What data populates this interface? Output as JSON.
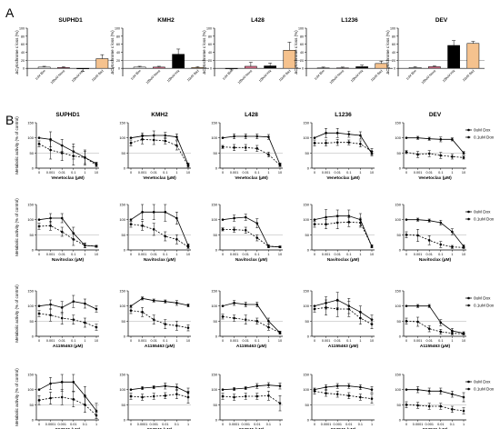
{
  "panel_labels": {
    "a": "A",
    "b": "B"
  },
  "chart_data": {
    "panel_a": {
      "type": "bar",
      "ylabel": "ΔCytochrome c loss (%)",
      "ylim": [
        -20,
        100
      ],
      "yticks": [
        0,
        20,
        40,
        60,
        80,
        100
      ],
      "threshold": 20,
      "categories": [
        "1uM Bim",
        "100uM Noxa",
        "100uM Hrk",
        "10uM Bad"
      ],
      "bar_colors": [
        "#f5f5f5",
        "#d6708a",
        "#000000",
        "#f5c28e"
      ],
      "cell_lines": [
        {
          "name": "SUPHD1",
          "values": [
            3,
            2,
            -1,
            24
          ],
          "errors": [
            2,
            2,
            6,
            10
          ]
        },
        {
          "name": "KMH2",
          "values": [
            3,
            3,
            35,
            2
          ],
          "errors": [
            2,
            2,
            13,
            2
          ]
        },
        {
          "name": "L428",
          "values": [
            -1,
            5,
            6,
            45
          ],
          "errors": [
            3,
            10,
            7,
            20
          ]
        },
        {
          "name": "L1236",
          "values": [
            1,
            1,
            4,
            12
          ],
          "errors": [
            2,
            2,
            4,
            6
          ]
        },
        {
          "name": "DEV",
          "values": [
            2,
            4,
            57,
            62
          ],
          "errors": [
            2,
            2,
            12,
            5
          ]
        }
      ]
    },
    "panel_b": {
      "type": "line",
      "ylabel": "Metabolic activity (% of control)",
      "ylim": [
        0,
        150
      ],
      "yticks": [
        0,
        50,
        100,
        150
      ],
      "cell_lines": [
        "SUPHD1",
        "KMH2",
        "L428",
        "L1236",
        "DEV"
      ],
      "legend": [
        "0uM Dox",
        "0.1uM Dox"
      ],
      "drugs": [
        {
          "name": "Venetoclax (µM)",
          "x": [
            "0",
            "0.001",
            "0.01",
            "0.1",
            "1",
            "10"
          ],
          "series": [
            {
              "name": "0uM Dox",
              "values": [
                [
                  100,
                  95,
                  75,
                  55,
                  35,
                  15
                ],
                [
                  100,
                  106,
                  108,
                  108,
                  103,
                  12
                ],
                [
                  100,
                  105,
                  105,
                  105,
                  103,
                  12
                ],
                [
                  100,
                  116,
                  116,
                  112,
                  108,
                  48
                ],
                [
                  100,
                  100,
                  97,
                  95,
                  95,
                  50
                ]
              ],
              "errors": [
                [
                  0,
                  25,
                  20,
                  25,
                  20,
                  5
                ],
                [
                  0,
                  10,
                  15,
                  10,
                  10,
                  5
                ],
                [
                  0,
                  8,
                  8,
                  8,
                  8,
                  5
                ],
                [
                  0,
                  15,
                  15,
                  10,
                  12,
                  8
                ],
                [
                  0,
                  5,
                  5,
                  8,
                  5,
                  5
                ]
              ]
            },
            {
              "name": "0.1uM Dox",
              "values": [
                [
                  80,
                  60,
                  50,
                  40,
                  35,
                  10
                ],
                [
                  83,
                  95,
                  93,
                  90,
                  75,
                  8
                ],
                [
                  70,
                  68,
                  68,
                  65,
                  45,
                  10
                ],
                [
                  83,
                  83,
                  85,
                  85,
                  80,
                  55
                ],
                [
                  53,
                  45,
                  48,
                  42,
                  38,
                  35
                ]
              ],
              "errors": [
                [
                  10,
                  30,
                  25,
                  30,
                  25,
                  5
                ],
                [
                  10,
                  15,
                  15,
                  10,
                  15,
                  5
                ],
                [
                  5,
                  10,
                  10,
                  10,
                  8,
                  5
                ],
                [
                  10,
                  10,
                  10,
                  8,
                  10,
                  10
                ],
                [
                  5,
                  10,
                  10,
                  10,
                  8,
                  5
                ]
              ]
            }
          ]
        },
        {
          "name": "Navitoclax (µM)",
          "x": [
            "0",
            "0.001",
            "0.01",
            "0.1",
            "1",
            "10"
          ],
          "series": [
            {
              "name": "0uM Dox",
              "values": [
                [
                  100,
                  105,
                  105,
                  55,
                  15,
                  12
                ],
                [
                  100,
                  125,
                  125,
                  125,
                  105,
                  15
                ],
                [
                  100,
                  105,
                  108,
                  88,
                  12,
                  10
                ],
                [
                  100,
                  108,
                  112,
                  112,
                  100,
                  12
                ],
                [
                  100,
                  100,
                  97,
                  90,
                  60,
                  12
                ]
              ],
              "errors": [
                [
                  0,
                  15,
                  15,
                  20,
                  8,
                  3
                ],
                [
                  0,
                  25,
                  25,
                  30,
                  20,
                  5
                ],
                [
                  0,
                  10,
                  10,
                  15,
                  5,
                  3
                ],
                [
                  0,
                  25,
                  20,
                  20,
                  20,
                  5
                ],
                [
                  0,
                  5,
                  5,
                  8,
                  10,
                  5
                ]
              ]
            },
            {
              "name": "0.1uM Dox",
              "values": [
                [
                  78,
                  80,
                  60,
                  35,
                  15,
                  12
                ],
                [
                  85,
                  80,
                  68,
                  45,
                  35,
                  10
                ],
                [
                  68,
                  67,
                  65,
                  40,
                  12,
                  10
                ],
                [
                  85,
                  85,
                  90,
                  92,
                  90,
                  12
                ],
                [
                  50,
                  48,
                  32,
                  18,
                  10,
                  8
                ]
              ],
              "errors": [
                [
                  10,
                  15,
                  15,
                  20,
                  8,
                  3
                ],
                [
                  10,
                  15,
                  20,
                  15,
                  15,
                  5
                ],
                [
                  5,
                  8,
                  10,
                  10,
                  5,
                  3
                ],
                [
                  10,
                  15,
                  20,
                  15,
                  15,
                  5
                ],
                [
                  10,
                  20,
                  15,
                  10,
                  5,
                  3
                ]
              ]
            }
          ]
        },
        {
          "name": "A1155463 (µM)",
          "x": [
            "0",
            "0.001",
            "0.01",
            "0.1",
            "1",
            "10"
          ],
          "series": [
            {
              "name": "0uM Dox",
              "values": [
                [
                  100,
                  105,
                  95,
                  115,
                  108,
                  90
                ],
                [
                  100,
                  125,
                  118,
                  115,
                  110,
                  102
                ],
                [
                  100,
                  110,
                  105,
                  105,
                  50,
                  12
                ],
                [
                  100,
                  110,
                  120,
                  100,
                  80,
                  55
                ],
                [
                  100,
                  100,
                  100,
                  45,
                  18,
                  10
                ]
              ],
              "errors": [
                [
                  0,
                  15,
                  20,
                  20,
                  15,
                  10
                ],
                [
                  0,
                  5,
                  5,
                  5,
                  8,
                  5
                ],
                [
                  0,
                  8,
                  8,
                  8,
                  10,
                  5
                ],
                [
                  0,
                  20,
                  25,
                  25,
                  20,
                  15
                ],
                [
                  0,
                  5,
                  5,
                  10,
                  8,
                  5
                ]
              ]
            },
            {
              "name": "0.1uM Dox",
              "values": [
                [
                  75,
                  70,
                  60,
                  55,
                  45,
                  30
                ],
                [
                  85,
                  80,
                  55,
                  40,
                  35,
                  28
                ],
                [
                  65,
                  60,
                  55,
                  50,
                  30,
                  12
                ],
                [
                  90,
                  95,
                  90,
                  90,
                  60,
                  40
                ],
                [
                  50,
                  48,
                  25,
                  15,
                  10,
                  8
                ]
              ],
              "errors": [
                [
                  10,
                  20,
                  20,
                  15,
                  15,
                  10
                ],
                [
                  10,
                  15,
                  15,
                  15,
                  15,
                  10
                ],
                [
                  8,
                  10,
                  15,
                  10,
                  10,
                  5
                ],
                [
                  10,
                  25,
                  25,
                  25,
                  20,
                  15
                ],
                [
                  10,
                  15,
                  10,
                  8,
                  5,
                  3
                ]
              ]
            }
          ]
        },
        {
          "name": "S63845 (µM)",
          "x": [
            "0",
            "0.0001",
            "0.001",
            "0.01",
            "0.1",
            "1"
          ],
          "series": [
            {
              "name": "0uM Dox",
              "values": [
                [
                  100,
                  120,
                  125,
                  125,
                  80,
                  30
                ],
                [
                  100,
                  105,
                  108,
                  112,
                  108,
                  90
                ],
                [
                  100,
                  102,
                  105,
                  112,
                  115,
                  112
                ],
                [
                  100,
                  108,
                  112,
                  112,
                  108,
                  100
                ],
                [
                  100,
                  100,
                  95,
                  95,
                  85,
                  75
                ]
              ],
              "errors": [
                [
                  0,
                  20,
                  30,
                  30,
                  30,
                  25
                ],
                [
                  0,
                  5,
                  5,
                  10,
                  10,
                  15
                ],
                [
                  0,
                  5,
                  5,
                  8,
                  8,
                  10
                ],
                [
                  0,
                  8,
                  8,
                  8,
                  8,
                  10
                ],
                [
                  0,
                  10,
                  10,
                  10,
                  10,
                  15
                ]
              ]
            },
            {
              "name": "0.1uM Dox",
              "values": [
                [
                  65,
                  72,
                  75,
                  68,
                  50,
                  15
                ],
                [
                  78,
                  75,
                  78,
                  80,
                  85,
                  75
                ],
                [
                  78,
                  75,
                  78,
                  78,
                  80,
                  55
                ],
                [
                  95,
                  88,
                  85,
                  80,
                  75,
                  70
                ],
                [
                  50,
                  48,
                  45,
                  45,
                  35,
                  30
                ]
              ],
              "errors": [
                [
                  15,
                  20,
                  25,
                  25,
                  25,
                  10
                ],
                [
                  10,
                  10,
                  10,
                  10,
                  15,
                  20
                ],
                [
                  10,
                  10,
                  10,
                  10,
                  15,
                  25
                ],
                [
                  10,
                  10,
                  10,
                  10,
                  10,
                  15
                ],
                [
                  10,
                  10,
                  10,
                  10,
                  10,
                  10
                ]
              ]
            }
          ]
        }
      ]
    }
  }
}
